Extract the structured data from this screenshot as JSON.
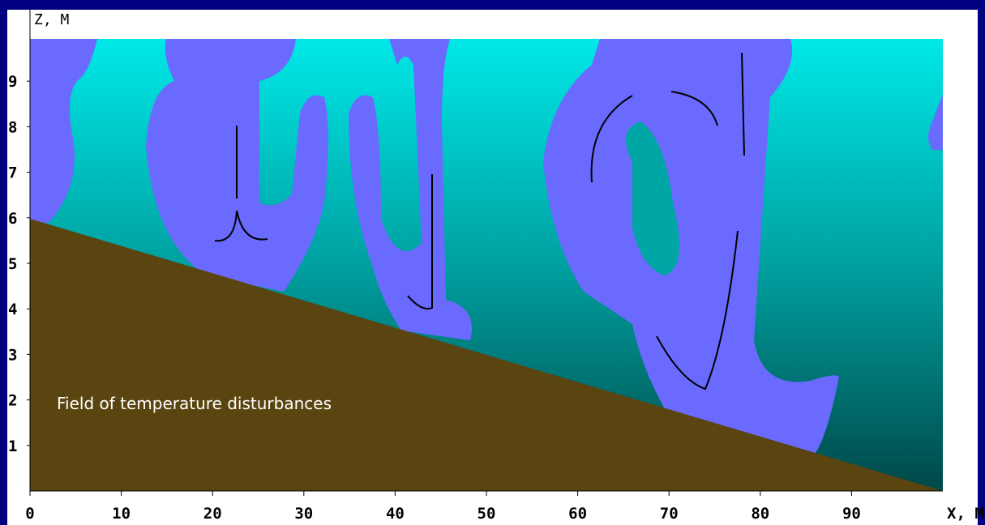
{
  "chart_data": {
    "type": "field",
    "annotation": "Field of temperature disturbances",
    "xlabel": "X, M",
    "ylabel": "Z, M",
    "xlim": [
      0,
      100
    ],
    "ylim": [
      0,
      10
    ],
    "xticks": [
      0,
      10,
      20,
      30,
      40,
      50,
      60,
      70,
      80,
      90
    ],
    "yticks": [
      1,
      2,
      3,
      4,
      5,
      6,
      7,
      8,
      9
    ]
  }
}
